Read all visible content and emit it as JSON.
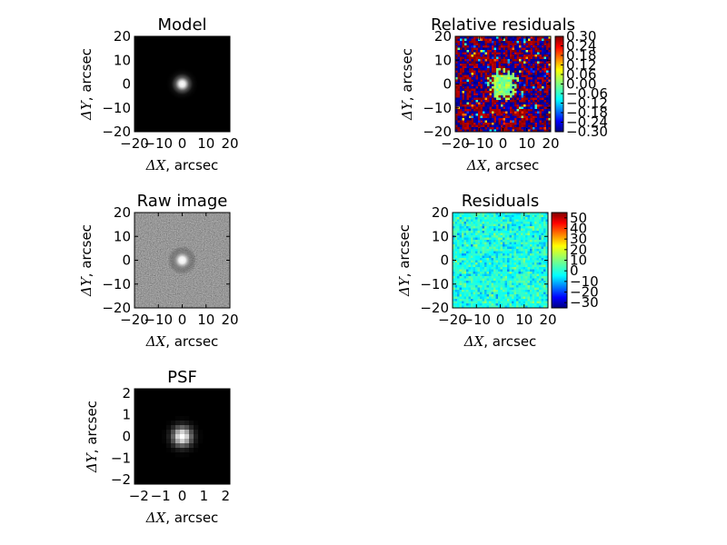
{
  "chart_data": [
    {
      "type": "heatmap",
      "title": "Model",
      "xlabel": "arcsec",
      "ylabel": "arcsec",
      "x_symbol": "ΔX,",
      "y_symbol": "ΔY,",
      "xlim": [
        -20,
        20
      ],
      "ylim": [
        -20,
        20
      ],
      "xticks": [
        "−20",
        "−10",
        "0",
        "10",
        "20"
      ],
      "yticks": [
        "20",
        "10",
        "0",
        "−10",
        "−20"
      ],
      "colormap": "gray",
      "content": "bright compact source at center on black background",
      "colorbar": null
    },
    {
      "type": "heatmap",
      "title": "Relative residuals",
      "xlabel": "arcsec",
      "ylabel": "arcsec",
      "x_symbol": "ΔX,",
      "y_symbol": "ΔY,",
      "xlim": [
        -20,
        20
      ],
      "ylim": [
        -20,
        20
      ],
      "xticks": [
        "−20",
        "−10",
        "0",
        "10",
        "20"
      ],
      "yticks": [
        "20",
        "10",
        "0",
        "−10",
        "−20"
      ],
      "colormap": "jet",
      "content": "noisy saturated residuals, cyan/green near center",
      "colorbar": {
        "min": -0.3,
        "max": 0.3,
        "ticks": [
          "0.30",
          "0.24",
          "0.18",
          "0.12",
          "0.06",
          "0.00",
          "−0.06",
          "−0.12",
          "−0.18",
          "−0.24",
          "−0.30"
        ]
      }
    },
    {
      "type": "heatmap",
      "title": "Raw image",
      "xlabel": "arcsec",
      "ylabel": "arcsec",
      "x_symbol": "ΔX,",
      "y_symbol": "ΔY,",
      "xlim": [
        -20,
        20
      ],
      "ylim": [
        -20,
        20
      ],
      "xticks": [
        "−20",
        "−10",
        "0",
        "10",
        "20"
      ],
      "yticks": [
        "20",
        "10",
        "0",
        "−10",
        "−20"
      ],
      "colormap": "gray",
      "content": "noisy background with bright source at center",
      "colorbar": null
    },
    {
      "type": "heatmap",
      "title": "Residuals",
      "xlabel": "arcsec",
      "ylabel": "arcsec",
      "x_symbol": "ΔX,",
      "y_symbol": "ΔY,",
      "xlim": [
        -20,
        20
      ],
      "ylim": [
        -20,
        20
      ],
      "xticks": [
        "−20",
        "−10",
        "0",
        "10",
        "20"
      ],
      "yticks": [
        "20",
        "10",
        "0",
        "−10",
        "−20"
      ],
      "colormap": "jet",
      "content": "noise residuals, mostly cyan",
      "colorbar": {
        "min": -35,
        "max": 55,
        "ticks": [
          "50",
          "40",
          "30",
          "20",
          "10",
          "0",
          "−10",
          "−20",
          "−30"
        ]
      }
    },
    {
      "type": "heatmap",
      "title": "PSF",
      "xlabel": "arcsec",
      "ylabel": "arcsec",
      "x_symbol": "ΔX,",
      "y_symbol": "ΔY,",
      "xlim": [
        -2.2,
        2.2
      ],
      "ylim": [
        -2.2,
        2.2
      ],
      "xticks": [
        "−2",
        "−1",
        "0",
        "1",
        "2"
      ],
      "yticks": [
        "2",
        "1",
        "0",
        "−1",
        "−2"
      ],
      "colormap": "gray",
      "content": "pixelated gaussian point spread function at center",
      "colorbar": null
    }
  ]
}
